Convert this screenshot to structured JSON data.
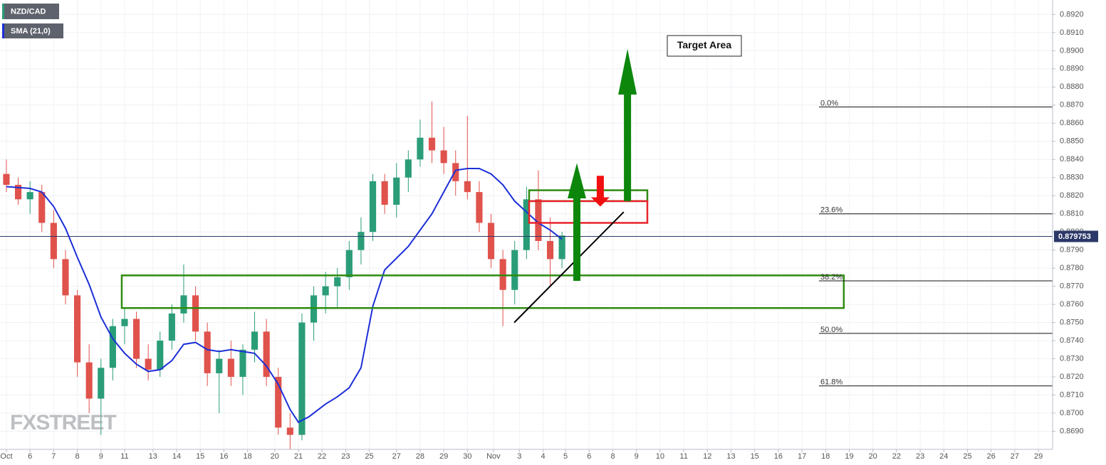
{
  "chart_data": {
    "type": "candlestick",
    "series": [
      {
        "name": "NZD/CAD",
        "type": "candlestick",
        "color": "#2a9d78",
        "color_down": "#e0524c",
        "x": [
          0,
          0.5,
          1,
          1.5,
          2,
          2.5,
          3,
          3.5,
          4,
          4.5,
          5,
          5.5,
          6,
          6.5,
          7,
          7.5,
          8,
          8.5,
          9,
          9.5,
          10,
          10.5,
          11,
          11.5,
          12,
          12.5,
          13,
          13.5,
          14,
          14.5,
          15,
          15.5,
          16,
          16.5,
          17,
          17.5,
          18,
          18.5,
          19,
          19.5,
          20,
          20.5,
          21,
          21.5,
          22,
          22.5,
          23,
          23.5
        ],
        "open": [
          0.8832,
          0.8826,
          0.8818,
          0.8822,
          0.8805,
          0.8785,
          0.8765,
          0.8728,
          0.8708,
          0.8725,
          0.8748,
          0.8752,
          0.873,
          0.8724,
          0.874,
          0.8755,
          0.8765,
          0.8745,
          0.8722,
          0.873,
          0.872,
          0.8735,
          0.8745,
          0.872,
          0.8692,
          0.8688,
          0.875,
          0.8765,
          0.877,
          0.8775,
          0.879,
          0.88,
          0.8828,
          0.8815,
          0.883,
          0.884,
          0.8852,
          0.8845,
          0.8838,
          0.8828,
          0.8822,
          0.8805,
          0.8785,
          0.8768,
          0.879,
          0.8818,
          0.8795,
          0.8785
        ],
        "high": [
          0.884,
          0.883,
          0.8828,
          0.8826,
          0.8812,
          0.879,
          0.8768,
          0.8738,
          0.873,
          0.8752,
          0.8758,
          0.8756,
          0.8738,
          0.8745,
          0.876,
          0.8782,
          0.877,
          0.875,
          0.8735,
          0.874,
          0.8738,
          0.8756,
          0.8752,
          0.8725,
          0.87,
          0.8755,
          0.877,
          0.8778,
          0.878,
          0.8795,
          0.8808,
          0.8832,
          0.8832,
          0.8838,
          0.8845,
          0.8862,
          0.8872,
          0.8858,
          0.8845,
          0.8864,
          0.8828,
          0.881,
          0.879,
          0.8795,
          0.8825,
          0.8834,
          0.8808,
          0.88
        ],
        "low": [
          0.8822,
          0.8815,
          0.881,
          0.88,
          0.878,
          0.876,
          0.872,
          0.87,
          0.8688,
          0.8718,
          0.8738,
          0.8725,
          0.8718,
          0.872,
          0.8735,
          0.875,
          0.874,
          0.8715,
          0.87,
          0.8715,
          0.871,
          0.8728,
          0.8715,
          0.8688,
          0.868,
          0.8685,
          0.874,
          0.8755,
          0.8758,
          0.8768,
          0.8782,
          0.8795,
          0.881,
          0.8808,
          0.8822,
          0.8836,
          0.8838,
          0.8832,
          0.882,
          0.8818,
          0.88,
          0.878,
          0.8748,
          0.876,
          0.8785,
          0.879,
          0.877,
          0.878
        ],
        "close": [
          0.8826,
          0.8818,
          0.8822,
          0.8805,
          0.8785,
          0.8765,
          0.8728,
          0.8708,
          0.8725,
          0.8748,
          0.8752,
          0.873,
          0.8724,
          0.874,
          0.8755,
          0.8765,
          0.8745,
          0.8722,
          0.873,
          0.872,
          0.8735,
          0.8745,
          0.872,
          0.8692,
          0.8688,
          0.875,
          0.8765,
          0.877,
          0.8775,
          0.879,
          0.88,
          0.8828,
          0.8815,
          0.883,
          0.884,
          0.8852,
          0.8845,
          0.8838,
          0.8828,
          0.8822,
          0.8805,
          0.8785,
          0.8768,
          0.879,
          0.8818,
          0.8795,
          0.8785,
          0.8798
        ]
      },
      {
        "name": "SMA (21,0)",
        "type": "line",
        "color": "#1c2fd8",
        "x": [
          0,
          1,
          1.5,
          2,
          2.5,
          3,
          3.5,
          4,
          4.5,
          5,
          5.5,
          6,
          6.5,
          7,
          7.5,
          8,
          8.5,
          9,
          9.5,
          10,
          10.5,
          11,
          11.5,
          12,
          12.35,
          12.8,
          13.5,
          14,
          14.5,
          15,
          15.5,
          16,
          17,
          18,
          19,
          19.5,
          20,
          20.5,
          21,
          21.5,
          22,
          22.5,
          23,
          23.5
        ],
        "values": [
          0.8825,
          0.8824,
          0.8822,
          0.8814,
          0.8802,
          0.8786,
          0.8771,
          0.8753,
          0.8741,
          0.8733,
          0.8727,
          0.8723,
          0.8724,
          0.8729,
          0.8738,
          0.8739,
          0.8735,
          0.8734,
          0.8735,
          0.8734,
          0.8733,
          0.8726,
          0.8716,
          0.8702,
          0.8695,
          0.8698,
          0.8705,
          0.8709,
          0.8714,
          0.8725,
          0.8759,
          0.8779,
          0.8792,
          0.881,
          0.8834,
          0.8835,
          0.8835,
          0.8832,
          0.8826,
          0.8817,
          0.8811,
          0.8805,
          0.8801,
          0.8796
        ]
      }
    ],
    "current_price": 0.879753,
    "fib_levels": [
      {
        "label": "0.0%",
        "value": 0.8869
      },
      {
        "label": "23.6%",
        "value": 0.881
      },
      {
        "label": "38.2%",
        "value": 0.8773
      },
      {
        "label": "50.0%",
        "value": 0.8744
      },
      {
        "label": "61.8%",
        "value": 0.8715
      }
    ],
    "zones": [
      {
        "x": [
          4.88,
          35.42
        ],
        "y": [
          0.8758,
          0.8776
        ],
        "color": "#2e8b10"
      },
      {
        "x": [
          22.11,
          27.11
        ],
        "y": [
          0.8817,
          0.8823
        ],
        "color": "#2e8b10"
      },
      {
        "x": [
          22.11,
          27.11
        ],
        "y": [
          0.8805,
          0.8817
        ],
        "color": "#e8242a"
      }
    ],
    "trendline": {
      "x": [
        21.48,
        26.11
      ],
      "y": [
        0.875,
        0.8811
      ],
      "color": "#000000"
    },
    "arrows": [
      {
        "x": 24.13,
        "from": 0.8773,
        "to": 0.8838,
        "color": "#0c870c"
      },
      {
        "x": 26.27,
        "from": 0.8817,
        "to": 0.8901,
        "color": "#0c870c"
      },
      {
        "x": 25.12,
        "from": 0.8831,
        "to": 0.8814,
        "color": "#f01010"
      }
    ],
    "annotation": "Target Area",
    "watermark": "FXSTREET",
    "xlim": [
      -0.27,
      44.25
    ],
    "ylim": [
      0.868,
      0.8928
    ],
    "grid": true,
    "yticks": [
      {
        "value": 0.869,
        "label": "0.8690"
      },
      {
        "value": 0.87,
        "label": "0.8700"
      },
      {
        "value": 0.871,
        "label": "0.8710"
      },
      {
        "value": 0.872,
        "label": "0.8720"
      },
      {
        "value": 0.873,
        "label": "0.8730"
      },
      {
        "value": 0.874,
        "label": "0.8740"
      },
      {
        "value": 0.875,
        "label": "0.8750"
      },
      {
        "value": 0.876,
        "label": "0.8760"
      },
      {
        "value": 0.877,
        "label": "0.8770"
      },
      {
        "value": 0.878,
        "label": "0.8780"
      },
      {
        "value": 0.879,
        "label": "0.8790"
      },
      {
        "value": 0.88,
        "label": "0.8800"
      },
      {
        "value": 0.881,
        "label": "0.8810"
      },
      {
        "value": 0.882,
        "label": "0.8820"
      },
      {
        "value": 0.883,
        "label": "0.8830"
      },
      {
        "value": 0.884,
        "label": "0.8840"
      },
      {
        "value": 0.885,
        "label": "0.8850"
      },
      {
        "value": 0.886,
        "label": "0.8860"
      },
      {
        "value": 0.887,
        "label": "0.8870"
      },
      {
        "value": 0.888,
        "label": "0.8880"
      },
      {
        "value": 0.889,
        "label": "0.8890"
      },
      {
        "value": 0.89,
        "label": "0.8900"
      },
      {
        "value": 0.891,
        "label": "0.8910"
      },
      {
        "value": 0.892,
        "label": "0.8920"
      }
    ],
    "xticks": [
      {
        "value": 0,
        "label": "Oct"
      },
      {
        "value": 1,
        "label": "6"
      },
      {
        "value": 2,
        "label": "7"
      },
      {
        "value": 3,
        "label": "8"
      },
      {
        "value": 4,
        "label": "9"
      },
      {
        "value": 5,
        "label": "11"
      },
      {
        "value": 6.2,
        "label": "13"
      },
      {
        "value": 7.2,
        "label": "14"
      },
      {
        "value": 8.2,
        "label": "15"
      },
      {
        "value": 9.2,
        "label": "16"
      },
      {
        "value": 10.2,
        "label": "18"
      },
      {
        "value": 11.35,
        "label": "20"
      },
      {
        "value": 12.35,
        "label": "21"
      },
      {
        "value": 13.35,
        "label": "22"
      },
      {
        "value": 14.35,
        "label": "23"
      },
      {
        "value": 15.35,
        "label": "25"
      },
      {
        "value": 16.5,
        "label": "27"
      },
      {
        "value": 17.5,
        "label": "28"
      },
      {
        "value": 18.5,
        "label": "29"
      },
      {
        "value": 19.5,
        "label": "30"
      },
      {
        "value": 20.6,
        "label": "Nov"
      },
      {
        "value": 21.7,
        "label": "3"
      },
      {
        "value": 22.7,
        "label": "4"
      },
      {
        "value": 23.65,
        "label": "5"
      },
      {
        "value": 24.65,
        "label": "6"
      },
      {
        "value": 25.65,
        "label": "8"
      },
      {
        "value": 26.65,
        "label": "9"
      },
      {
        "value": 27.65,
        "label": "10"
      },
      {
        "value": 28.65,
        "label": "11"
      },
      {
        "value": 29.65,
        "label": "12"
      },
      {
        "value": 30.65,
        "label": "13"
      },
      {
        "value": 31.65,
        "label": "15"
      },
      {
        "value": 32.65,
        "label": "16"
      },
      {
        "value": 33.65,
        "label": "17"
      },
      {
        "value": 34.65,
        "label": "18"
      },
      {
        "value": 35.65,
        "label": "19"
      },
      {
        "value": 36.65,
        "label": "20"
      },
      {
        "value": 37.65,
        "label": "22"
      },
      {
        "value": 38.65,
        "label": "23"
      },
      {
        "value": 39.65,
        "label": "24"
      },
      {
        "value": 40.65,
        "label": "25"
      },
      {
        "value": 41.65,
        "label": "26"
      },
      {
        "value": 42.65,
        "label": "27"
      },
      {
        "value": 43.65,
        "label": "29"
      }
    ]
  }
}
